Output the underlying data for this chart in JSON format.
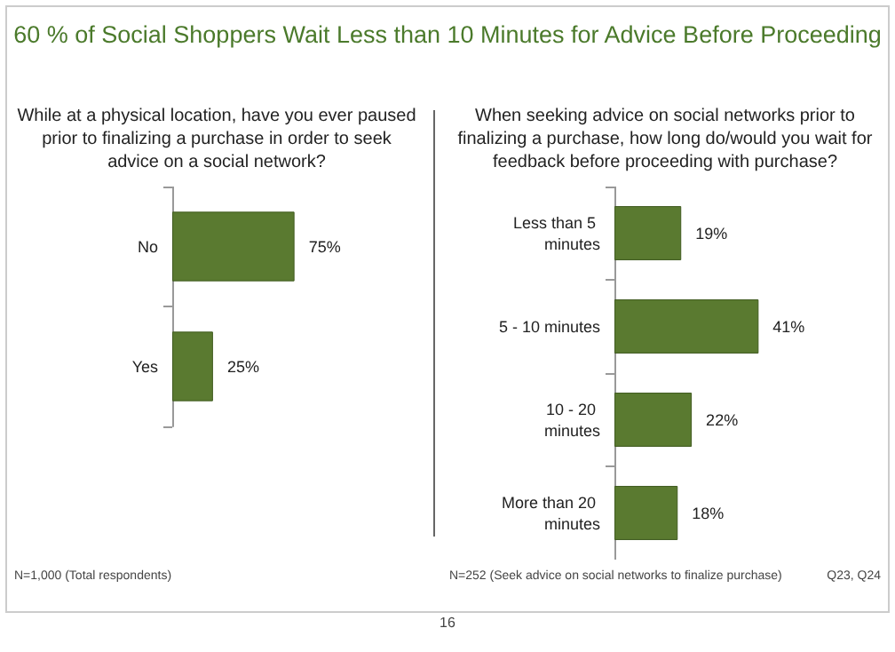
{
  "chart_data": [
    {
      "type": "bar",
      "orientation": "horizontal",
      "title": "60 % of Social Shoppers Wait Less than 10 Minutes for Advice Before Proceeding",
      "subtitle": "While at a physical location, have you ever paused prior to finalizing a purchase in order to seek advice on a social network?",
      "categories": [
        "No",
        "Yes"
      ],
      "values": [
        75,
        25
      ],
      "value_labels": [
        "75%",
        "25%"
      ],
      "color": "#5a7a30",
      "tick_labels": "y",
      "annotations": [
        "N=1,000 (Total respondents)",
        "16"
      ]
    },
    {
      "type": "bar",
      "orientation": "horizontal",
      "subtitle": "When seeking advice on social networks prior to finalizing a purchase, how long do/would you wait for feedback before proceeding with purchase?",
      "categories": [
        "Less than 5 minutes",
        "5 - 10 minutes",
        "10 - 20 minutes",
        "More than 20 minutes"
      ],
      "values": [
        19,
        41,
        22,
        18
      ],
      "value_labels": [
        "19%",
        "41%",
        "22%",
        "18%"
      ],
      "color": "#5a7a30",
      "tick_labels": "y",
      "annotations": [
        "N=252 (Seek advice on social networks to finalize purchase)",
        "Q23, Q24"
      ]
    }
  ]
}
